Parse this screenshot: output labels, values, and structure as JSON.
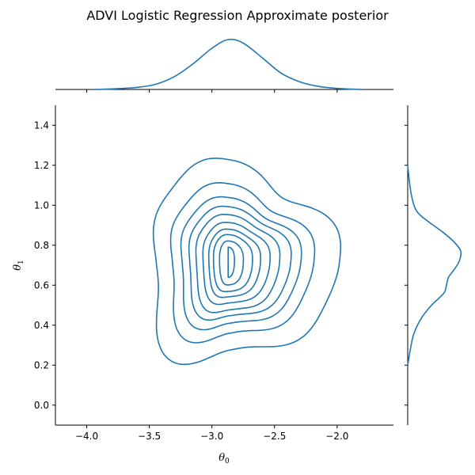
{
  "chart_data": {
    "type": "contour",
    "title": "ADVI Logistic Regression Approximate posterior",
    "xlabel": {
      "base": "θ",
      "sub": "0"
    },
    "ylabel": {
      "base": "θ",
      "sub": "1"
    },
    "xlim": [
      -4.25,
      -1.55
    ],
    "ylim": [
      -0.1,
      1.5
    ],
    "xticks": [
      -4.0,
      -3.5,
      -3.0,
      -2.5,
      -2.0
    ],
    "xtick_labels": [
      "−4.0",
      "−3.5",
      "−3.0",
      "−2.5",
      "−2.0"
    ],
    "yticks": [
      0.0,
      0.2,
      0.4,
      0.6,
      0.8,
      1.0,
      1.2,
      1.4
    ],
    "ytick_labels": [
      "0.0",
      "0.2",
      "0.4",
      "0.6",
      "0.8",
      "1.0",
      "1.2",
      "1.4"
    ],
    "grid": false,
    "color": "#1f77b4",
    "contour_center": {
      "x": -2.87,
      "y": 0.725
    },
    "contour_levels": [
      {
        "x_left": -3.51,
        "x_right": -2.06,
        "y_bottom": 0.22,
        "y_top": 1.18
      },
      {
        "x_left": -3.36,
        "x_right": -2.24,
        "y_bottom": 0.32,
        "y_top": 1.075
      },
      {
        "x_left": -3.27,
        "x_right": -2.33,
        "y_bottom": 0.38,
        "y_top": 1.015
      },
      {
        "x_left": -3.2,
        "x_right": -2.4,
        "y_bottom": 0.425,
        "y_top": 0.975
      },
      {
        "x_left": -3.14,
        "x_right": -2.48,
        "y_bottom": 0.46,
        "y_top": 0.94
      },
      {
        "x_left": -3.08,
        "x_right": -2.55,
        "y_bottom": 0.5,
        "y_top": 0.905
      },
      {
        "x_left": -3.03,
        "x_right": -2.62,
        "y_bottom": 0.535,
        "y_top": 0.875
      },
      {
        "x_left": -2.99,
        "x_right": -2.68,
        "y_bottom": 0.565,
        "y_top": 0.85
      },
      {
        "x_left": -2.94,
        "x_right": -2.75,
        "y_bottom": 0.6,
        "y_top": 0.82
      },
      {
        "x_left": -2.87,
        "x_right": -2.82,
        "y_bottom": 0.64,
        "y_top": 0.79
      }
    ],
    "marginal_x": {
      "x": [
        -3.95,
        -3.8,
        -3.6,
        -3.45,
        -3.3,
        -3.15,
        -3.0,
        -2.87,
        -2.75,
        -2.6,
        -2.45,
        -2.3,
        -2.15,
        -2.0,
        -1.8
      ],
      "density": [
        0.0,
        0.01,
        0.04,
        0.1,
        0.25,
        0.5,
        0.8,
        0.97,
        0.9,
        0.62,
        0.32,
        0.15,
        0.06,
        0.02,
        0.0
      ]
    },
    "marginal_y": {
      "y": [
        0.2,
        0.28,
        0.36,
        0.44,
        0.5,
        0.56,
        0.6,
        0.64,
        0.68,
        0.72,
        0.77,
        0.82,
        0.87,
        0.92,
        0.97,
        1.05,
        1.15,
        1.2
      ],
      "density": [
        0.0,
        0.05,
        0.12,
        0.27,
        0.45,
        0.68,
        0.73,
        0.77,
        0.88,
        0.97,
        1.0,
        0.86,
        0.64,
        0.38,
        0.17,
        0.07,
        0.02,
        0.0
      ]
    }
  }
}
